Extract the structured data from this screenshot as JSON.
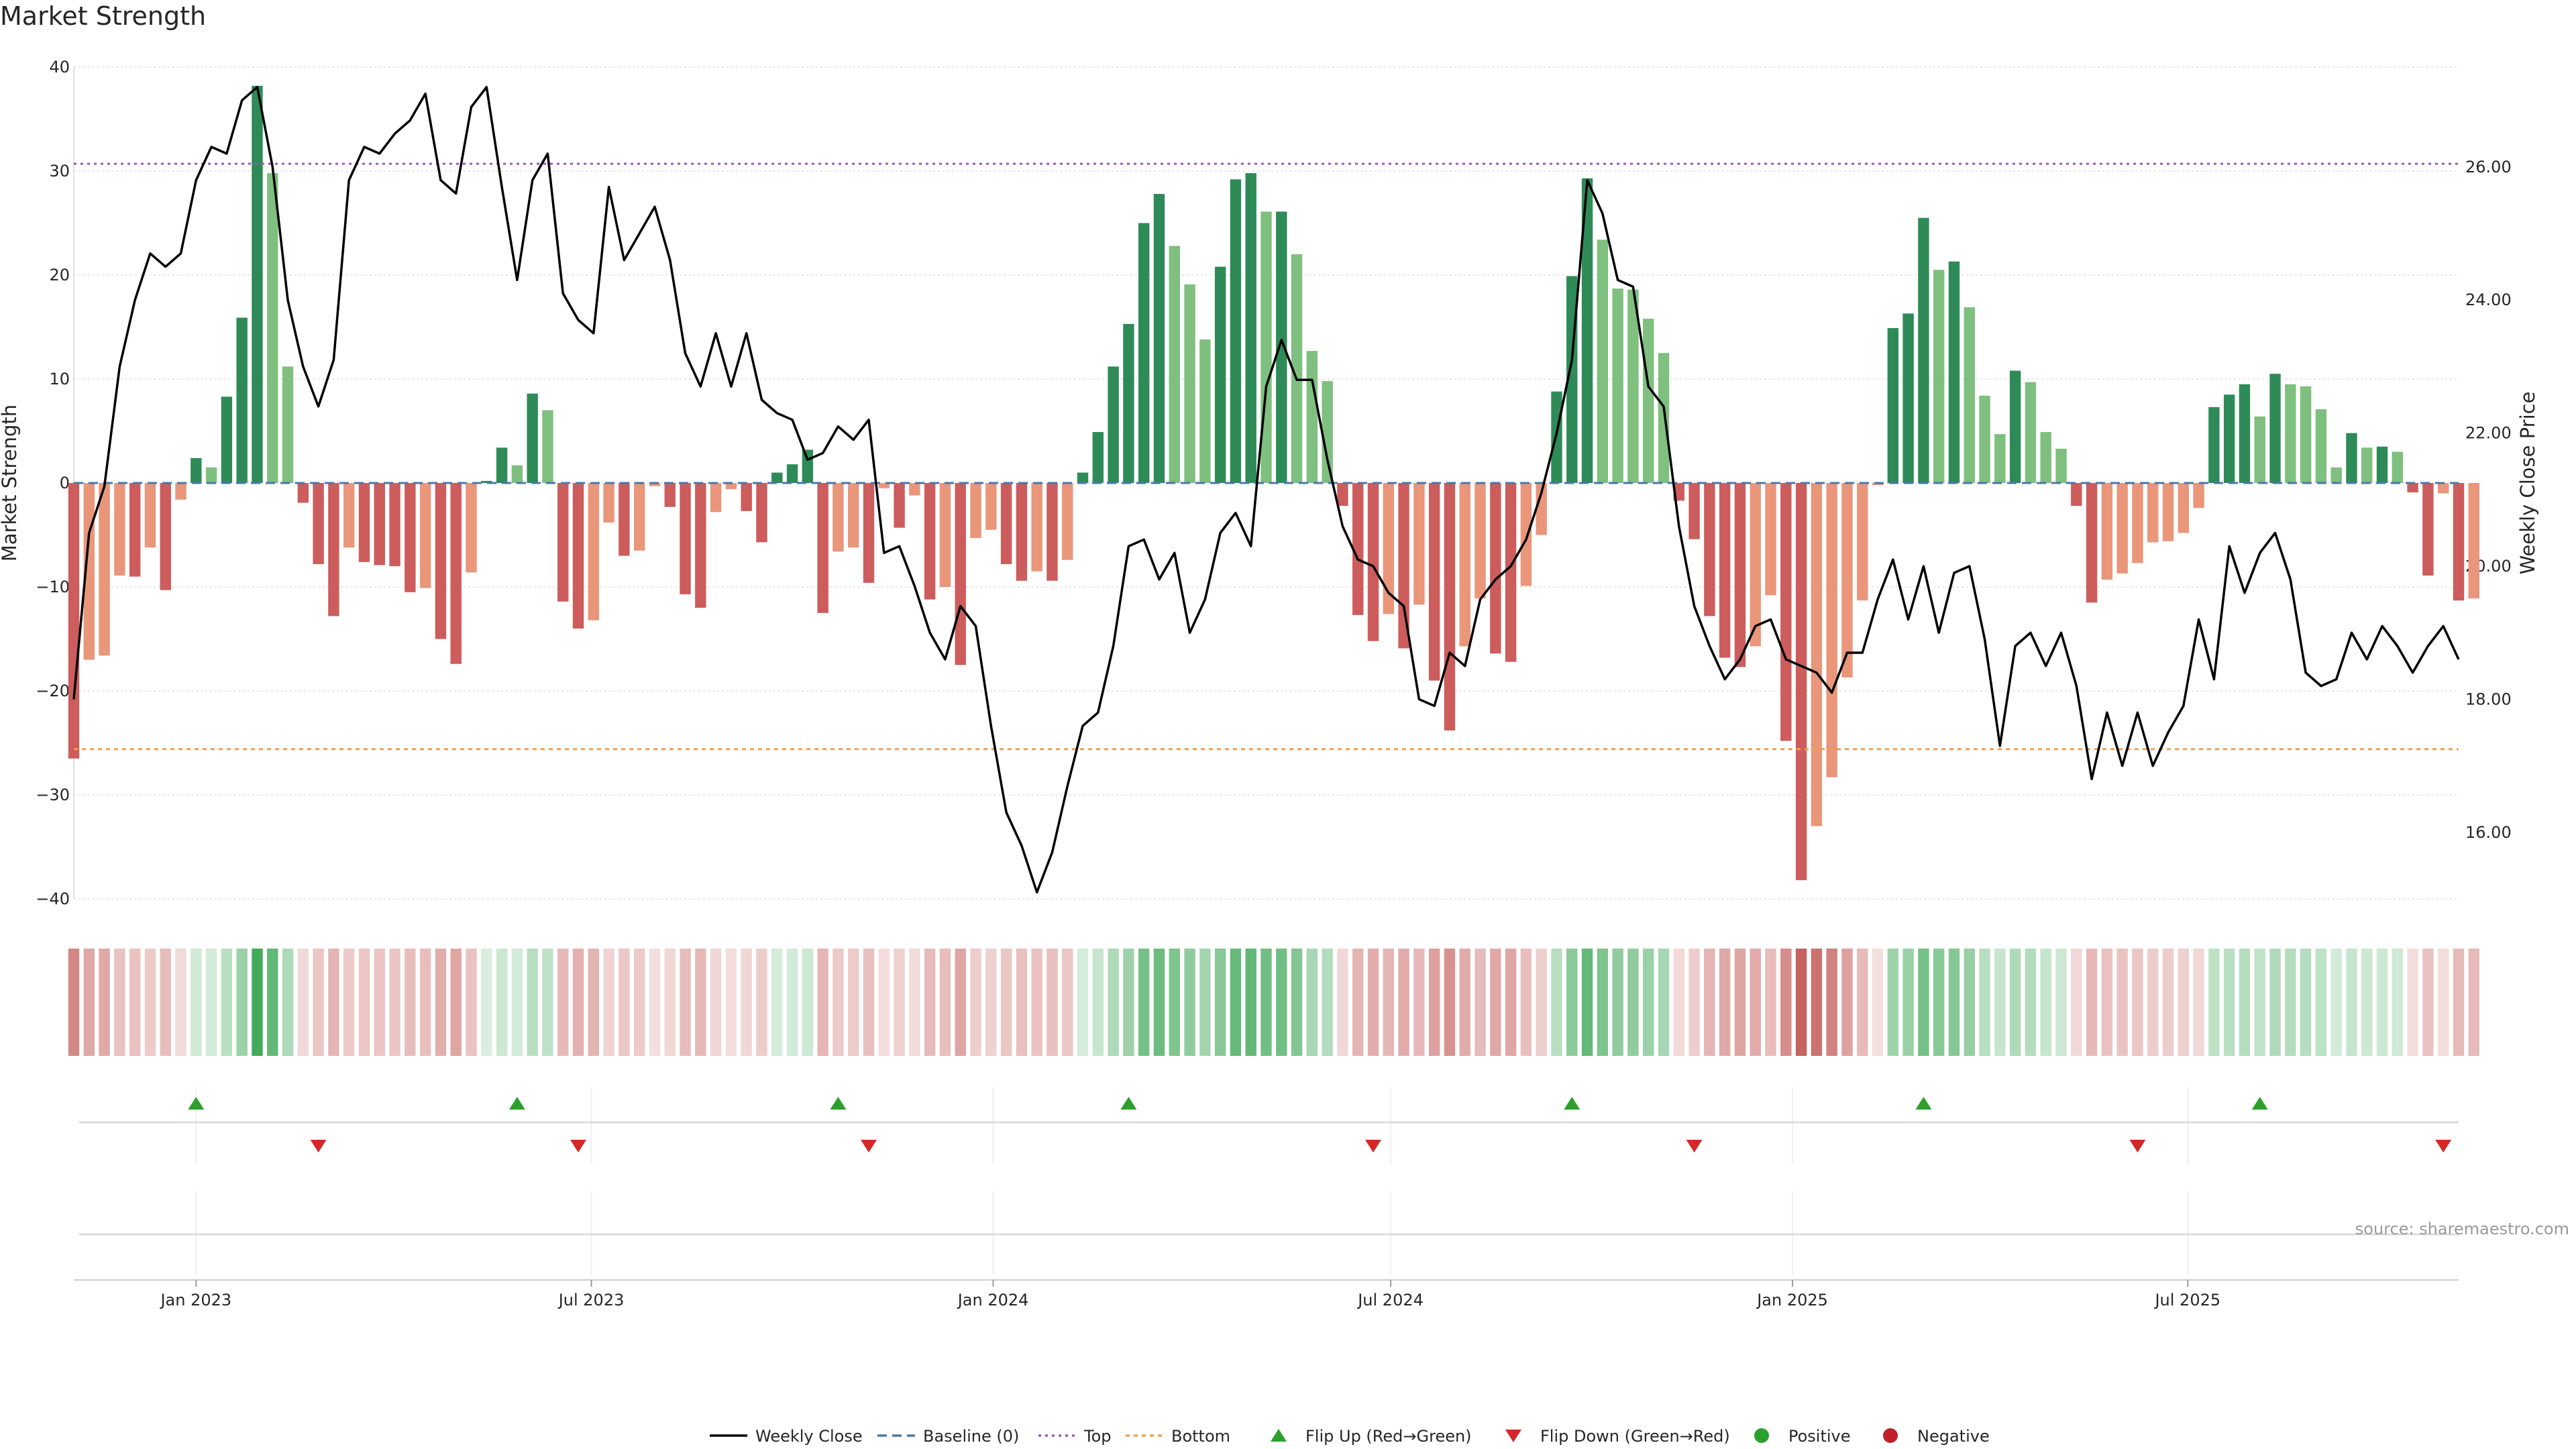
{
  "title": "Market Strength",
  "source_text": "source: sharemaestro.com",
  "colors": {
    "pos_strong": "#2e8b57",
    "pos_light": "#7fbf7f",
    "neg_strong": "#cd5c5c",
    "neg_light": "#e9967a",
    "price_line": "#000000",
    "baseline": "#4a78a8",
    "top_line": "#9b59b6",
    "bottom_line": "#f0a050",
    "flip_up": "#2ca02c",
    "flip_down": "#d62728",
    "positive": "#2ca02c",
    "negative": "#c0202a"
  },
  "chart_data": {
    "type": "bar",
    "title": "Market Strength",
    "ylabel_left": "Market Strength",
    "ylabel_right": "Weekly Close Price",
    "ylim_left": [
      -40,
      40
    ],
    "ylim_right": [
      15.0,
      27.5
    ],
    "left_ticks": [
      "40",
      "30",
      "20",
      "10",
      "0",
      "−10",
      "−20",
      "−30",
      "−40"
    ],
    "right_ticks": [
      "26.00",
      "24.00",
      "22.00",
      "20.00",
      "18.00",
      "16.00"
    ],
    "x_start": "2022-11-06",
    "x_end": "2025-11-02",
    "x_ticks": [
      {
        "date": "2023-01-01",
        "label": "Jan 2023"
      },
      {
        "date": "2023-07-01",
        "label": "Jul 2023"
      },
      {
        "date": "2024-01-01",
        "label": "Jan 2024"
      },
      {
        "date": "2024-07-01",
        "label": "Jul 2024"
      },
      {
        "date": "2025-01-01",
        "label": "Jan 2025"
      },
      {
        "date": "2025-07-01",
        "label": "Jul 2025"
      }
    ],
    "top_level": 30.7,
    "bottom_level": -25.6,
    "first_bar_date": "2022-11-06",
    "first_price_date": "2022-11-06",
    "strength": [
      -26.5,
      -17,
      -16.6,
      -8.9,
      -9,
      -6.2,
      -10.3,
      -1.6,
      2.4,
      1.5,
      8.3,
      15.9,
      38.2,
      29.8,
      11.2,
      -1.9,
      -7.8,
      -12.8,
      -6.2,
      -7.6,
      -7.9,
      -8,
      -10.5,
      -10.1,
      -15,
      -17.4,
      -8.6,
      0.2,
      3.4,
      1.7,
      8.6,
      7,
      -11.4,
      -14,
      -13.2,
      -3.8,
      -7,
      -6.5,
      -0.3,
      -2.3,
      -10.7,
      -12,
      -2.8,
      -0.6,
      -2.7,
      -5.7,
      1,
      1.8,
      3.2,
      -12.5,
      -6.6,
      -6.2,
      -9.6,
      -0.5,
      -4.3,
      -1.2,
      -11.2,
      -10,
      -17.5,
      -5.3,
      -4.5,
      -7.8,
      -9.4,
      -8.5,
      -9.4,
      -7.4,
      1,
      4.9,
      11.2,
      15.3,
      25,
      27.8,
      22.8,
      19.1,
      13.8,
      20.8,
      29.2,
      29.8,
      26.1,
      26.1,
      22,
      12.7,
      9.8,
      -2.2,
      -12.7,
      -15.2,
      -12.6,
      -15.9,
      -11.7,
      -19,
      -23.8,
      -15.7,
      -11.1,
      -16.4,
      -17.2,
      -9.9,
      -5,
      8.8,
      19.9,
      29.3,
      23.4,
      18.7,
      18.6,
      15.8,
      12.5,
      -1.7,
      -5.4,
      -12.8,
      -16.8,
      -17.7,
      -15.7,
      -10.8,
      -24.8,
      -38.2,
      -33,
      -28.3,
      -18.7,
      -11.3,
      -0.2,
      14.9,
      16.3,
      25.5,
      20.5,
      21.3,
      16.9,
      8.4,
      4.7,
      10.8,
      9.7,
      4.9,
      3.3,
      -2.2,
      -11.5,
      -9.3,
      -8.7,
      -7.7,
      -5.7,
      -5.6,
      -4.8,
      -2.4,
      7.3,
      8.5,
      9.5,
      6.4,
      10.5,
      9.5,
      9.3,
      7.1,
      1.5,
      4.8,
      3.4,
      3.5,
      3,
      -0.9,
      -8.9,
      -1,
      -11.3,
      -11.1
    ],
    "close": [
      18.0,
      20.5,
      21.2,
      23.0,
      24.0,
      24.7,
      24.5,
      24.7,
      25.8,
      26.3,
      26.2,
      27.0,
      27.2,
      26.0,
      24.0,
      23.0,
      22.4,
      23.1,
      25.8,
      26.3,
      26.2,
      26.5,
      26.7,
      27.1,
      25.8,
      25.6,
      26.9,
      27.2,
      25.7,
      24.3,
      25.8,
      26.2,
      24.1,
      23.7,
      23.5,
      25.7,
      24.6,
      25.0,
      25.4,
      24.6,
      23.2,
      22.7,
      23.5,
      22.7,
      23.5,
      22.5,
      22.3,
      22.2,
      21.6,
      21.7,
      22.1,
      21.9,
      22.2,
      20.2,
      20.3,
      19.7,
      19.0,
      18.6,
      19.4,
      19.1,
      17.6,
      16.3,
      15.8,
      15.1,
      15.7,
      16.7,
      17.6,
      17.8,
      18.8,
      20.3,
      20.4,
      19.8,
      20.2,
      19.0,
      19.5,
      20.5,
      20.8,
      20.3,
      22.7,
      23.4,
      22.8,
      22.8,
      21.6,
      20.6,
      20.1,
      20.0,
      19.6,
      19.4,
      18.0,
      17.9,
      18.7,
      18.5,
      19.5,
      19.8,
      20.0,
      20.4,
      21.1,
      22.0,
      23.1,
      25.8,
      25.3,
      24.3,
      24.2,
      22.7,
      22.4,
      20.6,
      19.4,
      18.8,
      18.3,
      18.6,
      19.1,
      19.2,
      18.6,
      18.5,
      18.4,
      18.1,
      18.7,
      18.7,
      19.5,
      20.1,
      19.2,
      20.0,
      19.0,
      19.9,
      20.0,
      18.9,
      17.3,
      18.8,
      19.0,
      18.5,
      19.0,
      18.2,
      16.8,
      17.8,
      17.0,
      17.8,
      17.0,
      17.5,
      17.9,
      19.2,
      18.3,
      20.3,
      19.6,
      20.2,
      20.5,
      19.8,
      18.4,
      18.2,
      18.3,
      19.0,
      18.6,
      19.1,
      18.8,
      18.4,
      18.8,
      19.1,
      18.6
    ],
    "flip_up_dates": [
      "2023-01-01",
      "2023-05-28",
      "2023-10-22",
      "2024-03-03",
      "2024-09-22",
      "2025-03-02",
      "2025-08-03"
    ],
    "flip_down_dates": [
      "2023-02-26",
      "2023-06-25",
      "2023-11-05",
      "2024-06-23",
      "2024-11-17",
      "2025-06-08",
      "2025-10-26"
    ],
    "legend": [
      "Weekly Close",
      "Baseline (0)",
      "Top",
      "Bottom",
      "Flip Up (Red→Green)",
      "Flip Down (Green→Red)",
      "Positive",
      "Negative"
    ],
    "legend_position": "bottom-center",
    "grid": true
  }
}
